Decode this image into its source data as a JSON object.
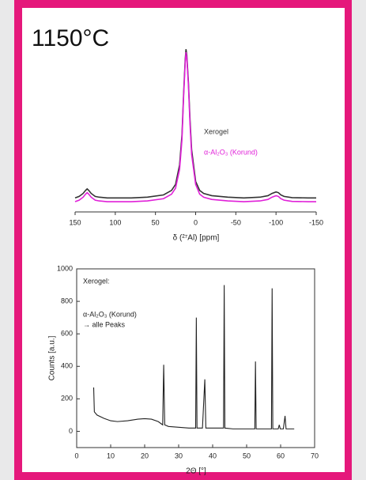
{
  "title": "1150°C",
  "chart_data": [
    {
      "type": "line",
      "xlabel": "δ (²⁷Al) [ppm]",
      "xlim": [
        150,
        -150
      ],
      "xticks": [
        150,
        100,
        50,
        0,
        -50,
        -100,
        -150
      ],
      "x": [
        150,
        145,
        140,
        137,
        135,
        133,
        130,
        125,
        120,
        110,
        100,
        80,
        60,
        40,
        30,
        25,
        20,
        17,
        15,
        13,
        12,
        11,
        9,
        7,
        5,
        0,
        -5,
        -10,
        -20,
        -40,
        -60,
        -80,
        -90,
        -95,
        -100,
        -103,
        -106,
        -110,
        -120,
        -140,
        -150
      ],
      "series": [
        {
          "name": "Xerogel",
          "color": "#333333",
          "values": [
            0.03,
            0.04,
            0.06,
            0.08,
            0.09,
            0.08,
            0.06,
            0.04,
            0.035,
            0.03,
            0.03,
            0.03,
            0.035,
            0.05,
            0.08,
            0.12,
            0.25,
            0.45,
            0.72,
            0.95,
            1.02,
            0.98,
            0.8,
            0.55,
            0.35,
            0.14,
            0.08,
            0.06,
            0.045,
            0.035,
            0.03,
            0.035,
            0.045,
            0.06,
            0.07,
            0.065,
            0.05,
            0.04,
            0.032,
            0.03,
            0.03
          ]
        },
        {
          "name": "α-Al₂O₃ (Korund)",
          "color": "#e020d8",
          "values": [
            0.005,
            0.015,
            0.035,
            0.055,
            0.065,
            0.055,
            0.035,
            0.015,
            0.01,
            0.005,
            0.005,
            0.005,
            0.01,
            0.025,
            0.055,
            0.095,
            0.22,
            0.42,
            0.7,
            0.93,
            1.0,
            0.96,
            0.78,
            0.52,
            0.32,
            0.12,
            0.055,
            0.035,
            0.02,
            0.01,
            0.005,
            0.01,
            0.02,
            0.035,
            0.045,
            0.04,
            0.025,
            0.015,
            0.007,
            0.005,
            0.005
          ]
        }
      ]
    },
    {
      "type": "line",
      "xlabel": "2Θ [°]",
      "ylabel": "Counts [a.u.]",
      "color": "#222222",
      "annotations": [
        "Xerogel:",
        "α-Al₂O₃ (Korund)",
        "→ alle Peaks"
      ],
      "xlim": [
        0,
        70
      ],
      "xticks": [
        0,
        10,
        20,
        30,
        40,
        50,
        60,
        70
      ],
      "ylim": [
        -100,
        1000
      ],
      "yticks": [
        0,
        200,
        400,
        600,
        800,
        1000
      ],
      "x": [
        5,
        5.2,
        6,
        8,
        10,
        12,
        15,
        18,
        20,
        22,
        24,
        25.3,
        25.6,
        25.9,
        27,
        30,
        33,
        35,
        35.2,
        35.4,
        37,
        37.7,
        38,
        42,
        43.2,
        43.4,
        43.6,
        46,
        50,
        52.4,
        52.6,
        52.8,
        55,
        57.3,
        57.5,
        57.7,
        59.3,
        59.6,
        59.9,
        60.8,
        61.3,
        61.6,
        64
      ],
      "values": [
        270,
        120,
        100,
        80,
        65,
        60,
        65,
        75,
        78,
        75,
        60,
        40,
        410,
        40,
        30,
        25,
        20,
        20,
        700,
        20,
        20,
        320,
        20,
        20,
        20,
        900,
        20,
        15,
        15,
        15,
        430,
        15,
        15,
        15,
        880,
        15,
        15,
        40,
        15,
        15,
        95,
        15,
        15
      ]
    }
  ]
}
